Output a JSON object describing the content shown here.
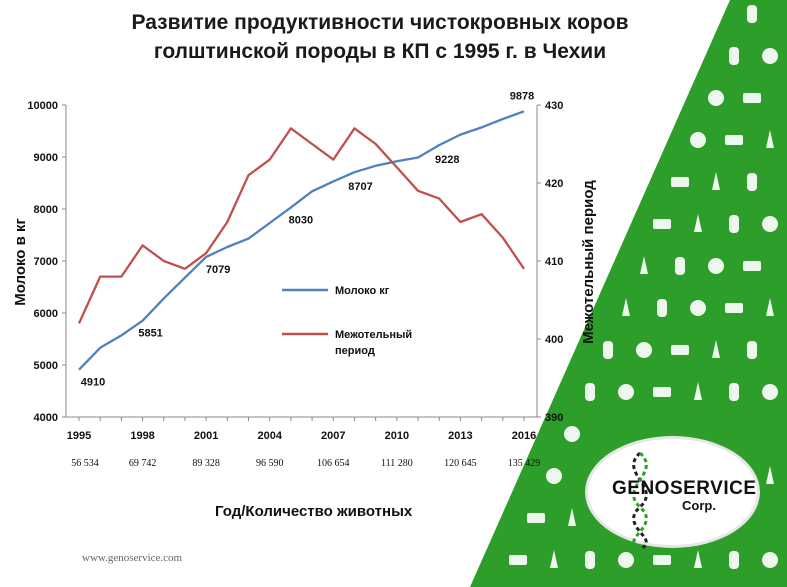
{
  "header": {
    "title_line1": "Развитие продуктивности чистокровных коров",
    "title_line2": "голштинской породы в КП с 1995 г. в Чехии"
  },
  "chart_data": {
    "type": "line",
    "x": [
      1995,
      1996,
      1997,
      1998,
      1999,
      2000,
      2001,
      2002,
      2003,
      2004,
      2005,
      2006,
      2007,
      2008,
      2009,
      2010,
      2011,
      2012,
      2013,
      2014,
      2015,
      2016
    ],
    "x_ticks": [
      "1995",
      "1998",
      "2001",
      "2004",
      "2007",
      "2010",
      "2013",
      "2016"
    ],
    "xlabel": "Год/Количество животных",
    "ylabel_left": "Молоко в кг",
    "ylabel_right": "Межотельный период",
    "ylim_left": [
      4000,
      10000
    ],
    "ylim_right": [
      390,
      430
    ],
    "yticks_left": [
      "4000",
      "5000",
      "6000",
      "7000",
      "8000",
      "9000",
      "10000"
    ],
    "yticks_right": [
      "390",
      "400",
      "410",
      "420",
      "430"
    ],
    "series": [
      {
        "name": "Молоко кг",
        "axis": "left",
        "color": "#4f81bd",
        "values": [
          4910,
          5330,
          5570,
          5851,
          6280,
          6680,
          7079,
          7270,
          7430,
          7730,
          8030,
          8340,
          8530,
          8707,
          8830,
          8920,
          8990,
          9228,
          9430,
          9570,
          9730,
          9878
        ]
      },
      {
        "name": "Межотельный период",
        "axis": "right",
        "color": "#c0504d",
        "values": [
          402,
          408,
          408,
          412,
          410,
          409,
          411,
          415,
          421,
          423,
          427,
          425,
          423,
          427,
          425,
          422,
          419,
          418,
          415,
          416,
          413,
          409
        ]
      }
    ],
    "data_labels": [
      {
        "x": 1995,
        "value": "4910"
      },
      {
        "x": 1998,
        "value": "5851"
      },
      {
        "x": 2001,
        "value": "7079"
      },
      {
        "x": 2005,
        "value": "8030"
      },
      {
        "x": 2008,
        "value": "8707"
      },
      {
        "x": 2012,
        "value": "9228"
      },
      {
        "x": 2016,
        "value": "9878"
      }
    ],
    "animal_counts": [
      "56 534",
      "69 742",
      "89 328",
      "96 590",
      "106 654",
      "111 280",
      "120 645",
      "135 429"
    ],
    "legend": {
      "milk": "Молоко кг",
      "interval_line1": "Межотельный",
      "interval_line2": "период",
      "placement": "center-right"
    },
    "grid": false
  },
  "footer": {
    "url": "www.genoservice.com"
  },
  "logo": {
    "name": "GENOSERVICE",
    "suffix": "Corp."
  },
  "colors": {
    "panel_green": "#2e9e2b",
    "icon_white": "#ffffff"
  }
}
